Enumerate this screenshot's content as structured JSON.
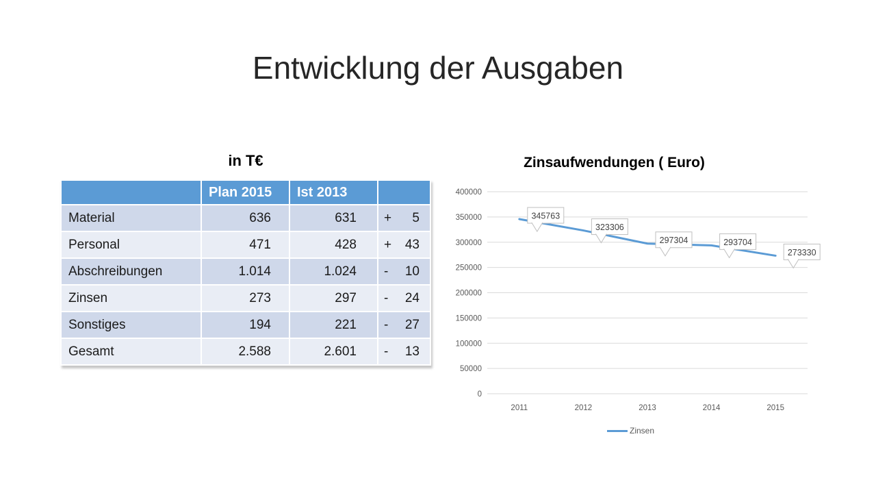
{
  "slide": {
    "title": "Entwicklung der Ausgaben",
    "background": "#ffffff"
  },
  "table": {
    "title": "in T€",
    "headers": [
      "",
      "Plan 2015",
      "Ist 2013",
      ""
    ],
    "rows": [
      {
        "label": "Material",
        "plan": "636",
        "ist": "631",
        "sign": "+",
        "diff": "5"
      },
      {
        "label": "Personal",
        "plan": "471",
        "ist": "428",
        "sign": "+",
        "diff": "43"
      },
      {
        "label": "Abschreibungen",
        "plan": "1.014",
        "ist": "1.024",
        "sign": "-",
        "diff": "10"
      },
      {
        "label": "Zinsen",
        "plan": "273",
        "ist": "297",
        "sign": "-",
        "diff": "24"
      },
      {
        "label": "Sonstiges",
        "plan": "194",
        "ist": "221",
        "sign": "-",
        "diff": "27"
      },
      {
        "label": "Gesamt",
        "plan": "2.588",
        "ist": "2.601",
        "sign": "-",
        "diff": "13"
      }
    ],
    "colors": {
      "header_bg": "#5b9bd5",
      "header_text": "#ffffff",
      "band_dark": "#cfd8ea",
      "band_light": "#e9edf5"
    }
  },
  "chart_data": {
    "type": "line",
    "title": "Zinsaufwendungen ( Euro)",
    "categories": [
      "2011",
      "2012",
      "2013",
      "2014",
      "2015"
    ],
    "series": [
      {
        "name": "Zinsen",
        "values": [
          345763,
          323306,
          297304,
          293704,
          273330
        ],
        "color": "#5b9bd5"
      }
    ],
    "data_labels": [
      "345763",
      "323306",
      "297304",
      "293704",
      "273330"
    ],
    "xlabel": "",
    "ylabel": "",
    "ylim": [
      0,
      400000
    ],
    "y_tick_step": 50000,
    "y_ticks": [
      "0",
      "50000",
      "100000",
      "150000",
      "200000",
      "250000",
      "300000",
      "350000",
      "400000"
    ],
    "grid": true,
    "legend_position": "bottom",
    "colors": {
      "axis_text": "#595959",
      "grid_line": "#d9d9d9",
      "callout_border": "#bfbfbf",
      "callout_text": "#404040",
      "line": "#5b9bd5"
    }
  }
}
